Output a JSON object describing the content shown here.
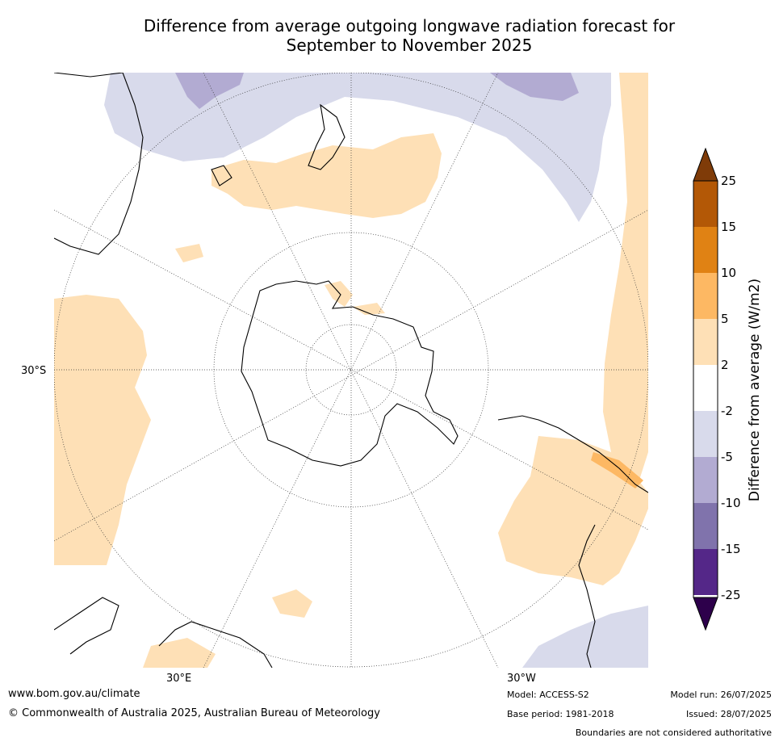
{
  "title_line1": "Difference from average outgoing longwave radiation forecast for",
  "title_line2": "September to November 2025",
  "map_labels": {
    "lat_30s": "30°S",
    "lon_30e": "30°E",
    "lon_30w": "30°W"
  },
  "legend": {
    "title": "Difference from average (W/m2)",
    "ticks": [
      "25",
      "15",
      "10",
      "5",
      "2",
      "-2",
      "-5",
      "-10",
      "-15",
      "-25"
    ],
    "bins": [
      {
        "range": "> 25",
        "color": "#7f3b08"
      },
      {
        "range": "15 to 25",
        "color": "#b35806"
      },
      {
        "range": "10 to 15",
        "color": "#e08214"
      },
      {
        "range": "5 to 10",
        "color": "#fdb863"
      },
      {
        "range": "2 to 5",
        "color": "#fee0b6"
      },
      {
        "range": "-2 to 2",
        "color": "#ffffff"
      },
      {
        "range": "-5 to -2",
        "color": "#d8daeb"
      },
      {
        "range": "-10 to -5",
        "color": "#b2abd2"
      },
      {
        "range": "-15 to -10",
        "color": "#8073ac"
      },
      {
        "range": "-25 to -15",
        "color": "#542788"
      },
      {
        "range": "< -25",
        "color": "#2d004b"
      }
    ]
  },
  "footer": {
    "website": "www.bom.gov.au/climate",
    "copyright": "© Commonwealth of Australia 2025, Australian Bureau of Meteorology",
    "model": "Model: ACCESS-S2",
    "base_period": "Base period: 1981-2018",
    "model_run": "Model run: 26/07/2025",
    "issued": "Issued: 28/07/2025",
    "disclaimer": "Boundaries are not considered authoritative"
  }
}
